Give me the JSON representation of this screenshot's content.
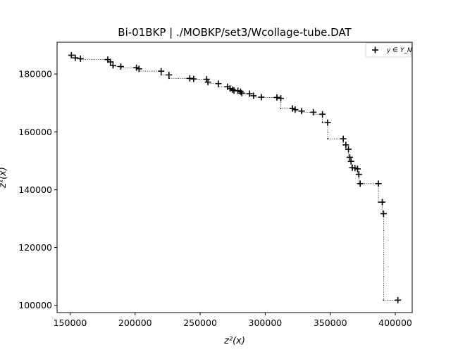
{
  "chart_data": {
    "type": "scatter",
    "title": "Bi-01BKP | ./MOBKP/set3/Wcollage-tube.DAT",
    "xlabel": "z²(x)",
    "ylabel": "z¹(x)",
    "xlim": [
      140000,
      413000
    ],
    "ylim": [
      97500,
      191000
    ],
    "xticks": [
      150000,
      200000,
      250000,
      300000,
      350000,
      400000
    ],
    "yticks": [
      100000,
      120000,
      140000,
      160000,
      180000
    ],
    "grid": false,
    "legend": {
      "position": "top-right",
      "entries": [
        "y ∈ Y_N"
      ]
    },
    "series": [
      {
        "name": "y ∈ Y_N",
        "marker": "plus",
        "color": "#000000",
        "x": [
          151000,
          154000,
          158000,
          179000,
          181000,
          183000,
          189000,
          201000,
          203000,
          220000,
          226000,
          242000,
          245000,
          255000,
          256000,
          264000,
          271000,
          273000,
          275000,
          276000,
          279000,
          281000,
          282000,
          288000,
          291000,
          297000,
          309000,
          312000,
          321000,
          323000,
          328000,
          337000,
          344000,
          348000,
          360000,
          362000,
          364000,
          365000,
          366000,
          367000,
          369000,
          371000,
          372000,
          373000,
          387000,
          390000,
          391000,
          402000
        ],
        "y": [
          186500,
          185600,
          185300,
          185000,
          184200,
          183000,
          182600,
          182200,
          181800,
          181000,
          179700,
          178500,
          178300,
          178200,
          177200,
          176700,
          175600,
          175000,
          174600,
          174300,
          174200,
          173900,
          173400,
          173200,
          172500,
          172000,
          171900,
          171600,
          168100,
          167700,
          167200,
          166800,
          166100,
          163200,
          157600,
          155500,
          154000,
          151200,
          149800,
          147600,
          147500,
          147200,
          145300,
          142100,
          142100,
          135700,
          131700,
          101800
        ]
      }
    ]
  }
}
